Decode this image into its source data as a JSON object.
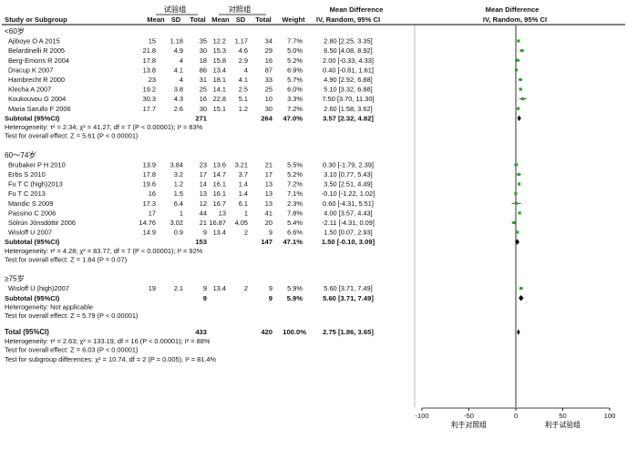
{
  "header": {
    "group_exp": "试验组",
    "group_ctrl": "对照组",
    "md_title": "Mean Difference",
    "md_title_right": "Mean Difference",
    "col_study": "Study or Subgroup",
    "col_mean1": "Mean",
    "col_sd1": "SD",
    "col_total1": "Total",
    "col_mean2": "Mean",
    "col_sd2": "SD",
    "col_total2": "Total",
    "col_weight": "Weight",
    "col_method": "IV, Random, 95% CI",
    "col_method_right": "IV, Random, 95% CI"
  },
  "subgroups": [
    {
      "label": "<60岁",
      "studies": [
        {
          "study": "Ajiboye O A 2015",
          "m1": "15",
          "sd1": "1.18",
          "n1": "35",
          "m2": "12.2",
          "sd2": "1.17",
          "n2": "34",
          "weight": "7.7%",
          "ci": "2.80 [2.25, 3.35]"
        },
        {
          "study": "Belardinelli R 2005",
          "m1": "21.8",
          "sd1": "4.9",
          "n1": "30",
          "m2": "15.3",
          "sd2": "4.6",
          "n2": "29",
          "weight": "5.0%",
          "ci": "6.50 [4.08, 8.92]"
        },
        {
          "study": "Berg-Emons R 2004",
          "m1": "17.8",
          "sd1": "4",
          "n1": "18",
          "m2": "15.8",
          "sd2": "2.9",
          "n2": "16",
          "weight": "5.2%",
          "ci": "2.00 [-0.33, 4.33]"
        },
        {
          "study": "Dracup K 2007",
          "m1": "13.8",
          "sd1": "4.1",
          "n1": "86",
          "m2": "13.4",
          "sd2": "4",
          "n2": "87",
          "weight": "6.9%",
          "ci": "0.40 [-0.81, 1.61]"
        },
        {
          "study": "Hambrecht R 2000",
          "m1": "23",
          "sd1": "4",
          "n1": "31",
          "m2": "18.1",
          "sd2": "4.1",
          "n2": "33",
          "weight": "5.7%",
          "ci": "4.90 [2.92, 6.88]"
        },
        {
          "study": "Klecha A 2007",
          "m1": "19.2",
          "sd1": "3.8",
          "n1": "25",
          "m2": "14.1",
          "sd2": "2.5",
          "n2": "25",
          "weight": "6.0%",
          "ci": "5.10 [3.32, 6.88]"
        },
        {
          "study": "Koukouvou G 2004",
          "m1": "30.3",
          "sd1": "4.3",
          "n1": "16",
          "m2": "22.8",
          "sd2": "5.1",
          "n2": "10",
          "weight": "3.3%",
          "ci": "7.50 [3.70, 11.30]"
        },
        {
          "study": "Maria Sarullo F 2006",
          "m1": "17.7",
          "sd1": "2.6",
          "n1": "30",
          "m2": "15.1",
          "sd2": "1.2",
          "n2": "30",
          "weight": "7.2%",
          "ci": "2.60 [1.58, 3.62]"
        }
      ],
      "subtotal": {
        "label": "Subtotal (95%CI)",
        "n1": "271",
        "n2": "264",
        "weight": "47.0%",
        "ci": "3.57 [2.32, 4.82]"
      },
      "het": "Heterogeneity: τ² = 2.34; χ² = 41.27, df = 7 (P < 0.00001); I² = 83%",
      "test": "Test for overall effect: Z = 5.61 (P < 0.00001)"
    },
    {
      "label": "60～74岁",
      "studies": [
        {
          "study": "Brubaker P H 2010",
          "m1": "13.9",
          "sd1": "3.84",
          "n1": "23",
          "m2": "13.6",
          "sd2": "3.21",
          "n2": "21",
          "weight": "5.5%",
          "ci": "0.30 [-1.79, 2.39]"
        },
        {
          "study": "Erbs S 2010",
          "m1": "17.8",
          "sd1": "3.2",
          "n1": "17",
          "m2": "14.7",
          "sd2": "3.7",
          "n2": "17",
          "weight": "5.2%",
          "ci": "3.10 [0.77, 5.43]"
        },
        {
          "study": "Fu T C (high)2013",
          "m1": "19.6",
          "sd1": "1.2",
          "n1": "14",
          "m2": "16.1",
          "sd2": "1.4",
          "n2": "13",
          "weight": "7.2%",
          "ci": "3.50 [2.51, 4.49]"
        },
        {
          "study": "Fu T C 2013",
          "m1": "16",
          "sd1": "1.5",
          "n1": "13",
          "m2": "16.1",
          "sd2": "1.4",
          "n2": "13",
          "weight": "7.1%",
          "ci": "-0.10 [-1.22, 1.02]"
        },
        {
          "study": "Mandic S 2009",
          "m1": "17.3",
          "sd1": "6.4",
          "n1": "12",
          "m2": "16.7",
          "sd2": "6.1",
          "n2": "13",
          "weight": "2.3%",
          "ci": "0.60 [-4.31, 5.51]"
        },
        {
          "study": "Passino C 2006",
          "m1": "17",
          "sd1": "1",
          "n1": "44",
          "m2": "13",
          "sd2": "1",
          "n2": "41",
          "weight": "7.8%",
          "ci": "4.00 [3.57, 4.43]"
        },
        {
          "study": "Sólrún Jónsdóttir 2006",
          "m1": "14.76",
          "sd1": "3.02",
          "n1": "21",
          "m2": "16.87",
          "sd2": "4.05",
          "n2": "20",
          "weight": "5.4%",
          "ci": "-2.11 [-4.31, 0.09]"
        },
        {
          "study": "Wisloff U 2007",
          "m1": "14.9",
          "sd1": "0.9",
          "n1": "9",
          "m2": "13.4",
          "sd2": "2",
          "n2": "9",
          "weight": "6.6%",
          "ci": "1.50 [0.07, 2.93]"
        }
      ],
      "subtotal": {
        "label": "Subtotal (95%CI)",
        "n1": "153",
        "n2": "147",
        "weight": "47.1%",
        "ci": "1.50 [-0.10, 3.09]"
      },
      "het": "Heterogeneity: τ² = 4.28; χ² = 83.77, df = 7 (P < 0.00001); I² = 92%",
      "test": "Test for overall effect: Z = 1.84 (P = 0.07)"
    },
    {
      "label": "≥75岁",
      "studies": [
        {
          "study": "Wisloff U (high)2007",
          "m1": "19",
          "sd1": "2.1",
          "n1": "9",
          "m2": "13.4",
          "sd2": "2",
          "n2": "9",
          "weight": "5.9%",
          "ci": "5.60 [3.71, 7.49]"
        }
      ],
      "subtotal": {
        "label": "Subtotal (95%CI)",
        "n1": "9",
        "n2": "9",
        "weight": "5.9%",
        "ci": "5.60 [3.71, 7.49]"
      },
      "het": "Heterogeneity: Not applicable",
      "test": "Test for overall effect: Z = 5.79 (P < 0.00001)"
    }
  ],
  "total": {
    "label": "Total (95%CI)",
    "n1": "433",
    "n2": "420",
    "weight": "100.0%",
    "ci": "2.75 [1.86, 3.65]"
  },
  "total_het": "Heterogeneity: τ² = 2.63; χ² = 133.19, df = 16 (P < 0.00001); I² = 88%",
  "total_test": "Test for overall effect: Z = 6.03 (P < 0.00001)",
  "subgroup_diff": "Test for subgroup differences: χ² = 10.74, df = 2 (P = 0.005), I² = 81.4%",
  "chart_data": {
    "type": "scatter",
    "xlim": [
      -100,
      100
    ],
    "ticks": [
      "-100",
      "-50",
      "0",
      "50",
      "100"
    ],
    "xlabel_left": "利于对照组",
    "xlabel_right": "利于试验组",
    "colors": {
      "square": "#22aa22",
      "diamond": "#000000",
      "line": "#000000"
    },
    "studies": [
      {
        "md": 2.8,
        "lo": 2.25,
        "hi": 3.35
      },
      {
        "md": 6.5,
        "lo": 4.08,
        "hi": 8.92
      },
      {
        "md": 2.0,
        "lo": -0.33,
        "hi": 4.33
      },
      {
        "md": 0.4,
        "lo": -0.81,
        "hi": 1.61
      },
      {
        "md": 4.9,
        "lo": 2.92,
        "hi": 6.88
      },
      {
        "md": 5.1,
        "lo": 3.32,
        "hi": 6.88
      },
      {
        "md": 7.5,
        "lo": 3.7,
        "hi": 11.3
      },
      {
        "md": 2.6,
        "lo": 1.58,
        "hi": 3.62
      },
      {
        "md": 3.57,
        "lo": 2.32,
        "hi": 4.82
      },
      {
        "md": 0.3,
        "lo": -1.79,
        "hi": 2.39
      },
      {
        "md": 3.1,
        "lo": 0.77,
        "hi": 5.43
      },
      {
        "md": 3.5,
        "lo": 2.51,
        "hi": 4.49
      },
      {
        "md": -0.1,
        "lo": -1.22,
        "hi": 1.02
      },
      {
        "md": 0.6,
        "lo": -4.31,
        "hi": 5.51
      },
      {
        "md": 4.0,
        "lo": 3.57,
        "hi": 4.43
      },
      {
        "md": -2.11,
        "lo": -4.31,
        "hi": 0.09
      },
      {
        "md": 1.5,
        "lo": 0.07,
        "hi": 2.93
      },
      {
        "md": 1.5,
        "lo": -0.1,
        "hi": 3.09
      },
      {
        "md": 5.6,
        "lo": 3.71,
        "hi": 7.49
      },
      {
        "md": 5.6,
        "lo": 3.71,
        "hi": 7.49
      },
      {
        "md": 2.75,
        "lo": 1.86,
        "hi": 3.65
      }
    ]
  }
}
